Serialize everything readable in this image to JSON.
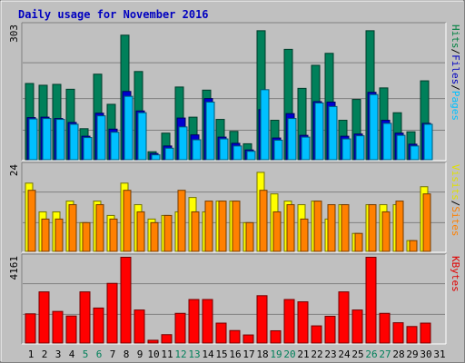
{
  "chart_data": [
    {
      "type": "bar",
      "title": "Daily usage for November 2016",
      "ymax_label": "303",
      "side_labels": [
        {
          "text": "Pages",
          "color": "#00c0ff"
        },
        {
          "text": "Files",
          "color": "#0000c0"
        },
        {
          "text": "Hits",
          "color": "#008040"
        }
      ],
      "categories": [
        "1",
        "2",
        "3",
        "4",
        "5",
        "6",
        "7",
        "8",
        "9",
        "10",
        "11",
        "12",
        "13",
        "14",
        "15",
        "16",
        "17",
        "18",
        "19",
        "20",
        "21",
        "22",
        "23",
        "24",
        "25",
        "26",
        "27",
        "28",
        "29",
        "30",
        "31"
      ],
      "series": [
        {
          "name": "Hits",
          "color": "#00805a",
          "values": [
            172,
            168,
            170,
            159,
            70,
            193,
            125,
            281,
            199,
            18,
            60,
            164,
            96,
            157,
            91,
            64,
            36,
            291,
            89,
            249,
            161,
            213,
            240,
            89,
            136,
            291,
            162,
            106,
            63,
            178,
            0
          ]
        },
        {
          "name": "Files",
          "color": "#0000d0",
          "values": [
            95,
            96,
            93,
            84,
            53,
            105,
            69,
            154,
            110,
            14,
            31,
            94,
            56,
            138,
            51,
            37,
            22,
            113,
            49,
            104,
            55,
            131,
            130,
            53,
            58,
            152,
            89,
            60,
            35,
            82,
            0
          ]
        },
        {
          "name": "Pages",
          "color": "#00c0ff",
          "values": [
            92,
            93,
            91,
            80,
            50,
            99,
            62,
            143,
            106,
            11,
            26,
            74,
            45,
            130,
            47,
            31,
            19,
            158,
            44,
            93,
            51,
            128,
            120,
            47,
            54,
            147,
            82,
            55,
            31,
            80,
            0
          ]
        }
      ]
    },
    {
      "type": "bar",
      "ymax_label": "24",
      "side_labels": [
        {
          "text": "Sites",
          "color": "#ff8000"
        },
        {
          "text": "Visits",
          "color": "#e0e000"
        }
      ],
      "series": [
        {
          "name": "Visits",
          "color": "#ffff00",
          "values": [
            19,
            11,
            11,
            14,
            8,
            14,
            10,
            19,
            13,
            9,
            10,
            11,
            15,
            11,
            14,
            14,
            8,
            22,
            16,
            14,
            13,
            14,
            9,
            13,
            5,
            13,
            13,
            13,
            3,
            18,
            0
          ]
        },
        {
          "name": "Sites",
          "color": "#ff8000",
          "values": [
            17,
            9,
            9,
            13,
            8,
            13,
            9,
            17,
            11,
            8,
            10,
            17,
            11,
            14,
            14,
            14,
            8,
            17,
            11,
            13,
            9,
            14,
            13,
            13,
            5,
            13,
            11,
            14,
            3,
            16,
            0
          ]
        }
      ]
    },
    {
      "type": "bar",
      "ymax_label": "4161",
      "side_labels": [
        {
          "text": "KBytes",
          "color": "#e00000"
        }
      ],
      "series": [
        {
          "name": "KBytes",
          "color": "#ff0000",
          "values": [
            1410,
            2469,
            1526,
            1305,
            2469,
            1690,
            2880,
            4140,
            1595,
            134,
            405,
            1434,
            2101,
            2101,
            962,
            603,
            391,
            2286,
            592,
            2101,
            1989,
            829,
            1291,
            2469,
            1595,
            4140,
            1434,
            980,
            798,
            962,
            0
          ]
        }
      ]
    }
  ]
}
